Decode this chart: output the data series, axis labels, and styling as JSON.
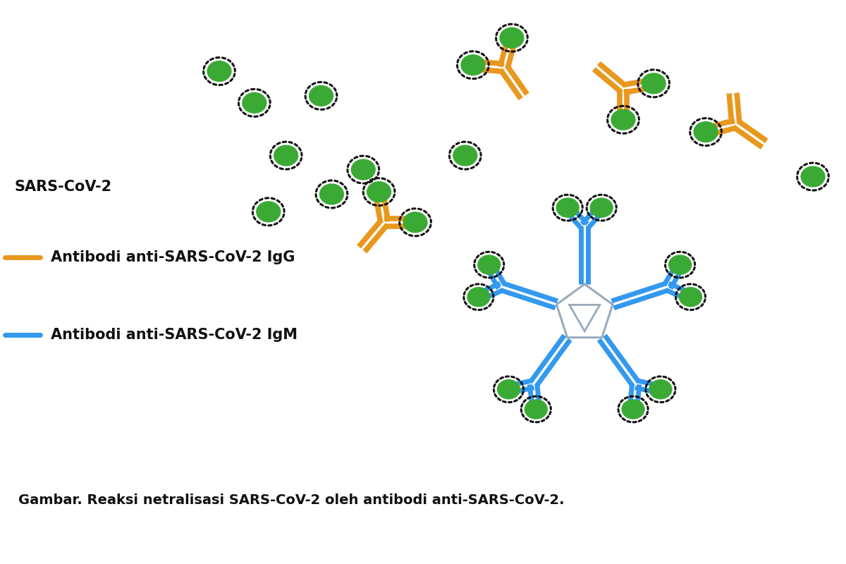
{
  "bg_color": "#ffffff",
  "title": "Gambar. Reaksi netralisasi SARS-CoV-2 oleh antibodi anti-SARS-CoV-2.",
  "label_sars": "SARS-CoV-2",
  "label_igg": "Antibodi anti-SARS-CoV-2 IgG",
  "label_igm": "Antibodi anti-SARS-CoV-2 IgM",
  "virus_green": "#3aaa35",
  "virus_border": "#111111",
  "igg_color": "#e8981e",
  "igm_color": "#3399ee",
  "pentagon_color": "#99aabb",
  "triangle_color": "#99aabb",
  "text_color": "#111111",
  "label_fontsize": 15,
  "caption_fontsize": 14
}
